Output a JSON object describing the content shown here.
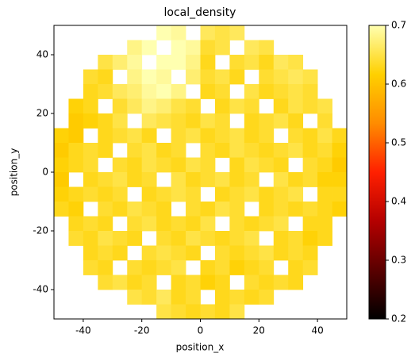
{
  "chart_data": {
    "type": "heatmap",
    "title": "local_density",
    "x_label": "position_x",
    "y_label": "position_y",
    "xlim": [
      -50,
      50
    ],
    "ylim": [
      -50,
      50
    ],
    "xticks": [
      -40,
      -20,
      0,
      20,
      40
    ],
    "yticks": [
      -40,
      -20,
      0,
      20,
      40
    ],
    "clim": [
      0.2,
      0.7
    ],
    "cticks": [
      0.2,
      0.3,
      0.4,
      0.5,
      0.6,
      0.7
    ],
    "colormap": [
      "#000000",
      "#5a0000",
      "#b40000",
      "#ff2000",
      "#ff8c00",
      "#ffd000",
      "#ffffb0"
    ],
    "x": [
      -47.5,
      -42.5,
      -37.5,
      -32.5,
      -27.5,
      -22.5,
      -17.5,
      -12.5,
      -7.5,
      -2.5,
      2.5,
      7.5,
      12.5,
      17.5,
      22.5,
      27.5,
      32.5,
      37.5,
      42.5,
      47.5
    ],
    "y": [
      47.5,
      42.5,
      37.5,
      32.5,
      27.5,
      22.5,
      17.5,
      12.5,
      7.5,
      2.5,
      -2.5,
      -7.5,
      -12.5,
      -17.5,
      -22.5,
      -27.5,
      -32.5,
      -37.5,
      -42.5,
      -47.5
    ],
    "values": [
      [
        null,
        null,
        null,
        null,
        null,
        null,
        null,
        0.7,
        0.69,
        null,
        0.66,
        0.65,
        0.66,
        null,
        null,
        null,
        null,
        null,
        null,
        null
      ],
      [
        null,
        null,
        null,
        null,
        null,
        0.68,
        0.7,
        null,
        0.7,
        0.69,
        0.64,
        0.65,
        null,
        0.66,
        0.65,
        null,
        null,
        null,
        null,
        null
      ],
      [
        null,
        null,
        null,
        0.65,
        0.67,
        0.69,
        null,
        0.7,
        0.7,
        0.68,
        0.63,
        null,
        0.64,
        0.65,
        0.63,
        0.66,
        0.65,
        null,
        null,
        null
      ],
      [
        null,
        null,
        0.64,
        0.63,
        null,
        0.68,
        0.7,
        0.69,
        null,
        0.67,
        0.64,
        0.65,
        0.63,
        null,
        0.64,
        0.65,
        0.66,
        0.65,
        null,
        null
      ],
      [
        null,
        null,
        0.63,
        0.64,
        0.66,
        0.67,
        0.69,
        0.7,
        0.68,
        null,
        0.63,
        0.64,
        null,
        0.65,
        0.63,
        0.64,
        0.65,
        0.64,
        null,
        null
      ],
      [
        null,
        0.62,
        0.63,
        null,
        0.64,
        0.66,
        0.68,
        0.67,
        0.65,
        0.64,
        null,
        0.63,
        0.65,
        0.64,
        null,
        0.63,
        0.65,
        0.64,
        0.65,
        null
      ],
      [
        null,
        0.61,
        0.62,
        0.63,
        0.65,
        null,
        0.66,
        0.65,
        0.64,
        0.63,
        0.65,
        0.64,
        null,
        0.63,
        0.64,
        0.65,
        0.63,
        null,
        0.64,
        null
      ],
      [
        0.62,
        0.61,
        null,
        0.63,
        0.64,
        0.65,
        0.63,
        null,
        0.64,
        0.65,
        0.63,
        0.64,
        0.65,
        0.63,
        0.64,
        null,
        0.64,
        0.63,
        0.65,
        0.63
      ],
      [
        0.61,
        0.63,
        0.64,
        0.63,
        null,
        0.64,
        0.65,
        0.63,
        0.64,
        null,
        0.64,
        0.63,
        0.65,
        0.64,
        0.63,
        0.64,
        0.65,
        0.63,
        0.64,
        0.62
      ],
      [
        0.62,
        0.63,
        0.64,
        null,
        0.64,
        0.63,
        0.65,
        0.64,
        0.63,
        0.65,
        0.64,
        null,
        0.63,
        0.65,
        0.64,
        0.63,
        null,
        0.64,
        0.63,
        0.61
      ],
      [
        0.61,
        null,
        0.63,
        0.64,
        0.65,
        0.63,
        0.64,
        null,
        0.65,
        0.63,
        0.64,
        0.65,
        0.63,
        0.64,
        null,
        0.65,
        0.63,
        0.64,
        0.62,
        0.62
      ],
      [
        0.62,
        0.63,
        0.64,
        0.63,
        0.64,
        null,
        0.63,
        0.64,
        0.65,
        0.64,
        null,
        0.63,
        0.64,
        0.65,
        0.63,
        0.64,
        0.65,
        null,
        0.63,
        0.63
      ],
      [
        0.63,
        0.62,
        null,
        0.64,
        0.63,
        0.65,
        0.64,
        0.63,
        null,
        0.64,
        0.63,
        0.65,
        0.64,
        null,
        0.63,
        0.64,
        0.63,
        0.64,
        0.63,
        0.62
      ],
      [
        null,
        0.63,
        0.64,
        0.63,
        null,
        0.64,
        0.65,
        0.63,
        0.64,
        0.63,
        0.65,
        null,
        0.64,
        0.63,
        0.64,
        0.65,
        null,
        0.63,
        0.63,
        null
      ],
      [
        null,
        0.64,
        0.63,
        0.65,
        0.64,
        0.63,
        null,
        0.64,
        0.63,
        0.65,
        0.64,
        0.63,
        0.64,
        0.65,
        null,
        0.63,
        0.64,
        0.62,
        0.63,
        null
      ],
      [
        null,
        null,
        0.63,
        0.64,
        0.63,
        null,
        0.64,
        0.65,
        0.64,
        0.63,
        null,
        0.64,
        0.63,
        0.64,
        0.65,
        0.63,
        0.64,
        0.63,
        null,
        null
      ],
      [
        null,
        null,
        0.64,
        0.63,
        null,
        0.64,
        0.63,
        0.64,
        0.65,
        null,
        0.63,
        0.64,
        0.62,
        0.63,
        0.64,
        null,
        0.63,
        0.64,
        null,
        null
      ],
      [
        null,
        null,
        null,
        0.64,
        0.65,
        0.63,
        0.64,
        null,
        0.63,
        0.64,
        0.62,
        0.63,
        null,
        0.64,
        0.63,
        0.64,
        0.63,
        null,
        null,
        null
      ],
      [
        null,
        null,
        null,
        null,
        null,
        0.65,
        0.64,
        0.66,
        0.63,
        0.64,
        null,
        0.63,
        0.64,
        0.63,
        0.64,
        null,
        null,
        null,
        null,
        null
      ],
      [
        null,
        null,
        null,
        null,
        null,
        null,
        null,
        0.65,
        0.64,
        0.63,
        0.64,
        0.63,
        0.65,
        null,
        null,
        null,
        null,
        null,
        null,
        null
      ]
    ]
  }
}
